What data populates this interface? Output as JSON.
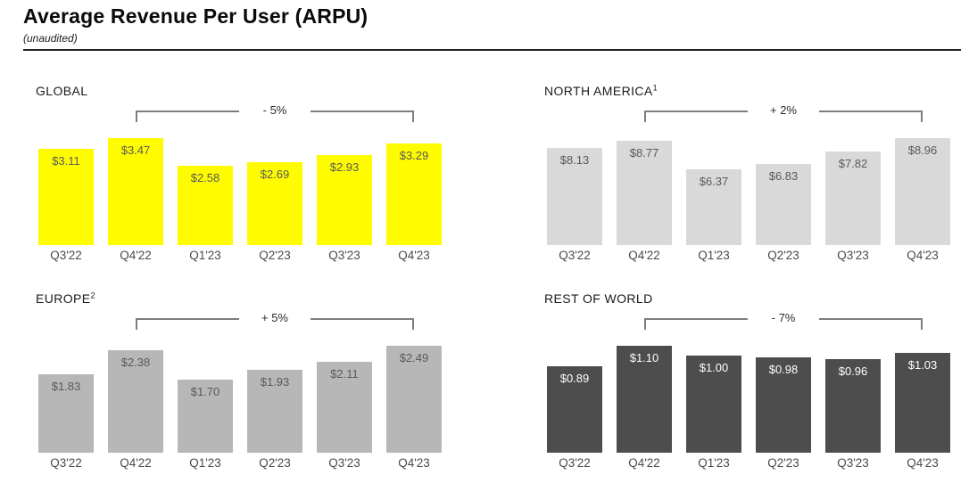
{
  "page": {
    "title": "Average Revenue Per User (ARPU)",
    "subtitle": "(unaudited)"
  },
  "chart_data": [
    {
      "type": "bar",
      "title": "GLOBAL",
      "superscript": "",
      "categories": [
        "Q3'22",
        "Q4'22",
        "Q1'23",
        "Q2'23",
        "Q3'23",
        "Q4'23"
      ],
      "values": [
        3.11,
        3.47,
        2.58,
        2.69,
        2.93,
        3.29
      ],
      "value_labels": [
        "$3.11",
        "$3.47",
        "$2.58",
        "$2.69",
        "$2.93",
        "$3.29"
      ],
      "change": {
        "label": "- 5%",
        "from": "Q4'22",
        "to": "Q4'23"
      },
      "bar_color": "#FFFC00",
      "value_label_color": "#595959",
      "baseline": 0,
      "grid": false,
      "axes_hidden": true,
      "legend": false
    },
    {
      "type": "bar",
      "title": "NORTH AMERICA",
      "superscript": "1",
      "categories": [
        "Q3'22",
        "Q4'22",
        "Q1'23",
        "Q2'23",
        "Q3'23",
        "Q4'23"
      ],
      "values": [
        8.13,
        8.77,
        6.37,
        6.83,
        7.82,
        8.96
      ],
      "value_labels": [
        "$8.13",
        "$8.77",
        "$6.37",
        "$6.83",
        "$7.82",
        "$8.96"
      ],
      "change": {
        "label": "+ 2%",
        "from": "Q4'22",
        "to": "Q4'23"
      },
      "bar_color": "#D9D9D9",
      "value_label_color": "#595959",
      "baseline": 0,
      "grid": false,
      "axes_hidden": true,
      "legend": false
    },
    {
      "type": "bar",
      "title": "EUROPE",
      "superscript": "2",
      "categories": [
        "Q3'22",
        "Q4'22",
        "Q1'23",
        "Q2'23",
        "Q3'23",
        "Q4'23"
      ],
      "values": [
        1.83,
        2.38,
        1.7,
        1.93,
        2.11,
        2.49
      ],
      "value_labels": [
        "$1.83",
        "$2.38",
        "$1.70",
        "$1.93",
        "$2.11",
        "$2.49"
      ],
      "change": {
        "label": "+ 5%",
        "from": "Q4'22",
        "to": "Q4'23"
      },
      "bar_color": "#B7B7B7",
      "value_label_color": "#595959",
      "baseline": 0,
      "grid": false,
      "axes_hidden": true,
      "legend": false
    },
    {
      "type": "bar",
      "title": "REST OF WORLD",
      "superscript": "",
      "categories": [
        "Q3'22",
        "Q4'22",
        "Q1'23",
        "Q2'23",
        "Q3'23",
        "Q4'23"
      ],
      "values": [
        0.89,
        1.1,
        1.0,
        0.98,
        0.96,
        1.03
      ],
      "value_labels": [
        "$0.89",
        "$1.10",
        "$1.00",
        "$0.98",
        "$0.96",
        "$1.03"
      ],
      "change": {
        "label": "- 7%",
        "from": "Q4'22",
        "to": "Q4'23"
      },
      "bar_color": "#4D4D4D",
      "value_label_color": "#FFFFFF",
      "baseline": 0,
      "grid": false,
      "axes_hidden": true,
      "legend": false
    }
  ]
}
